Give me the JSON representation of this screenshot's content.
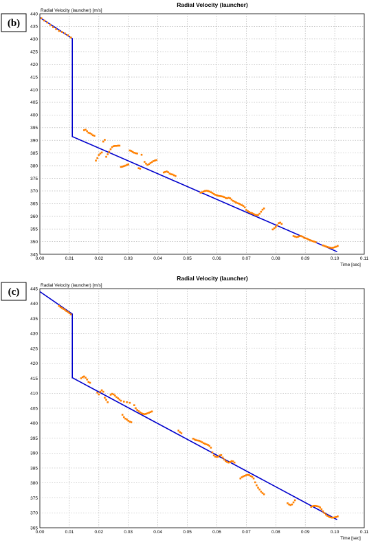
{
  "chart_data": [
    {
      "type": "line",
      "panel_label": "(b)",
      "title": "Radial Velocity (launcher)",
      "ylabel": "Radial Velocity (launcher) [m/s]",
      "xlabel": "Time [sec]",
      "xlim": [
        0,
        0.11
      ],
      "ylim": [
        345,
        440
      ],
      "xticks": [
        0.0,
        0.01,
        0.02,
        0.03,
        0.04,
        0.05,
        0.06,
        0.07,
        0.08,
        0.09,
        0.1,
        0.11
      ],
      "xtick_labels": [
        "0.00",
        "0.01",
        "0.02",
        "0.03",
        "0.04",
        "0.05",
        "0.06",
        "0.07",
        "0.08",
        "0.09",
        "0.10",
        "0.11"
      ],
      "yticks": [
        345,
        350,
        355,
        360,
        365,
        370,
        375,
        380,
        385,
        390,
        395,
        400,
        405,
        410,
        415,
        420,
        425,
        430,
        435,
        440
      ],
      "grid": true,
      "line_color": "#0000cc",
      "marker_color": "#ff8000",
      "series": [
        {
          "style": "line",
          "x": [
            0.0,
            0.011,
            0.011,
            0.1008
          ],
          "y": [
            438.5,
            430.2,
            391.5,
            346.0
          ]
        },
        {
          "style": "markers",
          "x": [
            0.0005,
            0.0015,
            0.0025,
            0.0035,
            0.0045,
            0.0055,
            0.0065,
            0.0075,
            0.0085,
            0.0095,
            0.0105,
            0.015,
            0.0155,
            0.016,
            0.0165,
            0.017,
            0.0175,
            0.018,
            0.0185,
            0.019,
            0.0195,
            0.02,
            0.0205,
            0.021,
            0.0215,
            0.022,
            0.0225,
            0.023,
            0.0235,
            0.024,
            0.0245,
            0.025,
            0.0255,
            0.026,
            0.0265,
            0.027,
            0.0275,
            0.028,
            0.0285,
            0.029,
            0.0295,
            0.03,
            0.0305,
            0.031,
            0.0315,
            0.032,
            0.0325,
            0.033,
            0.0335,
            0.034,
            0.0345,
            0.0355,
            0.036,
            0.0365,
            0.037,
            0.0375,
            0.038,
            0.0385,
            0.039,
            0.0395,
            0.042,
            0.0425,
            0.043,
            0.0435,
            0.044,
            0.0445,
            0.045,
            0.0455,
            0.046,
            0.0545,
            0.055,
            0.0555,
            0.056,
            0.0565,
            0.057,
            0.0575,
            0.058,
            0.0585,
            0.059,
            0.0595,
            0.06,
            0.0605,
            0.061,
            0.0615,
            0.062,
            0.0625,
            0.063,
            0.0635,
            0.064,
            0.0645,
            0.065,
            0.0655,
            0.066,
            0.0665,
            0.067,
            0.0675,
            0.068,
            0.0685,
            0.069,
            0.0695,
            0.07,
            0.0705,
            0.071,
            0.0715,
            0.072,
            0.0725,
            0.073,
            0.0735,
            0.074,
            0.0745,
            0.075,
            0.0755,
            0.076,
            0.079,
            0.0795,
            0.08,
            0.0805,
            0.081,
            0.0815,
            0.082,
            0.086,
            0.0865,
            0.087,
            0.0875,
            0.088,
            0.0885,
            0.089,
            0.0895,
            0.09,
            0.0905,
            0.091,
            0.0915,
            0.092,
            0.0925,
            0.093,
            0.0935,
            0.096,
            0.0965,
            0.097,
            0.0975,
            0.098,
            0.0985,
            0.099,
            0.0995,
            0.1,
            0.1005,
            0.101
          ],
          "y": [
            438.2,
            437.3,
            436.5,
            435.6,
            434.7,
            433.9,
            433.2,
            432.8,
            432.2,
            431.5,
            430.6,
            394.0,
            394.2,
            393.6,
            393.0,
            392.8,
            392.4,
            392.0,
            391.8,
            382.0,
            383.0,
            384.2,
            384.8,
            385.2,
            389.5,
            390.2,
            383.5,
            384.5,
            385.5,
            386.5,
            387.3,
            387.7,
            387.8,
            387.8,
            387.9,
            387.9,
            379.5,
            379.6,
            379.8,
            380.0,
            380.3,
            380.5,
            386.0,
            385.8,
            385.4,
            385.1,
            384.9,
            384.8,
            379.0,
            378.8,
            384.3,
            381.5,
            380.8,
            380.3,
            380.6,
            381.0,
            381.4,
            381.8,
            382.0,
            382.2,
            377.3,
            377.5,
            377.7,
            377.4,
            376.9,
            376.6,
            376.5,
            376.2,
            375.9,
            369.3,
            369.5,
            369.8,
            370.0,
            370.1,
            370.0,
            369.8,
            369.5,
            369.2,
            368.8,
            368.5,
            368.3,
            368.1,
            368.0,
            367.9,
            367.8,
            367.6,
            367.2,
            367.1,
            367.3,
            367.1,
            366.6,
            366.1,
            365.8,
            365.5,
            365.2,
            365.0,
            364.7,
            364.4,
            364.1,
            363.5,
            362.5,
            362.0,
            361.7,
            361.4,
            361.2,
            360.9,
            360.6,
            360.5,
            360.5,
            361.0,
            361.8,
            362.6,
            363.1,
            354.8,
            355.3,
            355.8,
            356.5,
            357.3,
            357.5,
            357.0,
            352.2,
            352.0,
            351.8,
            351.9,
            352.1,
            352.2,
            352.0,
            351.6,
            351.3,
            351.2,
            350.9,
            350.6,
            350.4,
            350.2,
            350.0,
            349.8,
            348.5,
            348.3,
            348.1,
            347.9,
            347.7,
            347.6,
            347.5,
            347.6,
            347.8,
            348.0,
            348.3
          ]
        }
      ]
    },
    {
      "type": "line",
      "panel_label": "(c)",
      "title": "Radial Velocity (launcher)",
      "ylabel": "Radial Velocity (launcher) [m/s]",
      "xlabel": "Time [sec]",
      "xlim": [
        0,
        0.11
      ],
      "ylim": [
        365,
        445
      ],
      "xticks": [
        0.0,
        0.01,
        0.02,
        0.03,
        0.04,
        0.05,
        0.06,
        0.07,
        0.08,
        0.09,
        0.1,
        0.11
      ],
      "xtick_labels": [
        "0.00",
        "0.01",
        "0.02",
        "0.03",
        "0.04",
        "0.05",
        "0.06",
        "0.07",
        "0.08",
        "0.09",
        "0.10",
        "0.11"
      ],
      "yticks": [
        365,
        370,
        375,
        380,
        385,
        390,
        395,
        400,
        405,
        410,
        415,
        420,
        425,
        430,
        435,
        440,
        445
      ],
      "grid": true,
      "line_color": "#0000cc",
      "marker_color": "#ff8000",
      "series": [
        {
          "style": "line",
          "x": [
            0.0,
            0.011,
            0.011,
            0.1008
          ],
          "y": [
            444.0,
            436.5,
            415.2,
            367.7
          ]
        },
        {
          "style": "markers",
          "x": [
            0.0065,
            0.007,
            0.0075,
            0.008,
            0.0085,
            0.009,
            0.0095,
            0.01,
            0.0105,
            0.014,
            0.0145,
            0.015,
            0.0155,
            0.016,
            0.0165,
            0.017,
            0.0195,
            0.02,
            0.0205,
            0.021,
            0.0215,
            0.022,
            0.0225,
            0.023,
            0.024,
            0.0245,
            0.025,
            0.0255,
            0.026,
            0.0265,
            0.027,
            0.0275,
            0.028,
            0.0285,
            0.029,
            0.0295,
            0.03,
            0.0305,
            0.031,
            0.0285,
            0.0295,
            0.0305,
            0.032,
            0.0325,
            0.033,
            0.0335,
            0.034,
            0.0345,
            0.035,
            0.0355,
            0.036,
            0.0365,
            0.037,
            0.0375,
            0.038,
            0.047,
            0.0475,
            0.048,
            0.052,
            0.0525,
            0.053,
            0.0535,
            0.054,
            0.0545,
            0.055,
            0.0555,
            0.056,
            0.0565,
            0.057,
            0.0575,
            0.058,
            0.0585,
            0.059,
            0.0595,
            0.06,
            0.0605,
            0.061,
            0.0615,
            0.062,
            0.0625,
            0.063,
            0.0635,
            0.064,
            0.0645,
            0.065,
            0.0655,
            0.066,
            0.068,
            0.0685,
            0.069,
            0.0695,
            0.07,
            0.0705,
            0.071,
            0.0715,
            0.072,
            0.0725,
            0.073,
            0.0735,
            0.074,
            0.0745,
            0.075,
            0.0755,
            0.076,
            0.084,
            0.0845,
            0.085,
            0.0855,
            0.086,
            0.0865,
            0.092,
            0.0925,
            0.093,
            0.0935,
            0.094,
            0.0945,
            0.095,
            0.0955,
            0.096,
            0.0965,
            0.097,
            0.0975,
            0.098,
            0.0985,
            0.099,
            0.0995,
            0.1,
            0.1005,
            0.101
          ],
          "y": [
            439.2,
            438.8,
            438.5,
            438.2,
            437.9,
            437.5,
            437.2,
            436.8,
            436.4,
            415.0,
            415.4,
            415.6,
            415.2,
            414.6,
            413.8,
            413.5,
            410.2,
            409.6,
            410.5,
            411.0,
            410.5,
            408.5,
            407.8,
            407.0,
            409.5,
            409.8,
            409.6,
            409.2,
            408.7,
            408.3,
            407.9,
            407.5,
            402.8,
            402.0,
            401.5,
            401.2,
            400.8,
            400.5,
            400.3,
            407.2,
            407.0,
            406.8,
            406.0,
            405.0,
            404.4,
            404.0,
            403.6,
            403.3,
            403.1,
            403.0,
            403.1,
            403.3,
            403.5,
            403.7,
            403.9,
            397.5,
            397.0,
            396.6,
            394.8,
            394.5,
            394.3,
            394.2,
            394.1,
            393.9,
            393.6,
            393.3,
            393.1,
            392.9,
            392.7,
            392.4,
            391.8,
            390.2,
            389.2,
            388.8,
            388.7,
            388.8,
            389.2,
            389.3,
            388.5,
            387.8,
            387.3,
            387.0,
            386.8,
            387.0,
            387.3,
            387.2,
            386.8,
            381.5,
            381.9,
            382.2,
            382.4,
            382.6,
            382.7,
            382.6,
            382.3,
            382.0,
            381.5,
            380.2,
            379.2,
            378.4,
            377.8,
            377.1,
            376.6,
            376.2,
            373.2,
            372.8,
            372.6,
            372.8,
            373.5,
            374.2,
            372.0,
            372.2,
            372.3,
            372.3,
            372.2,
            372.1,
            371.8,
            371.2,
            370.5,
            369.9,
            369.4,
            369.0,
            368.7,
            368.5,
            368.4,
            368.4,
            368.5,
            368.6,
            368.8
          ]
        }
      ]
    }
  ]
}
